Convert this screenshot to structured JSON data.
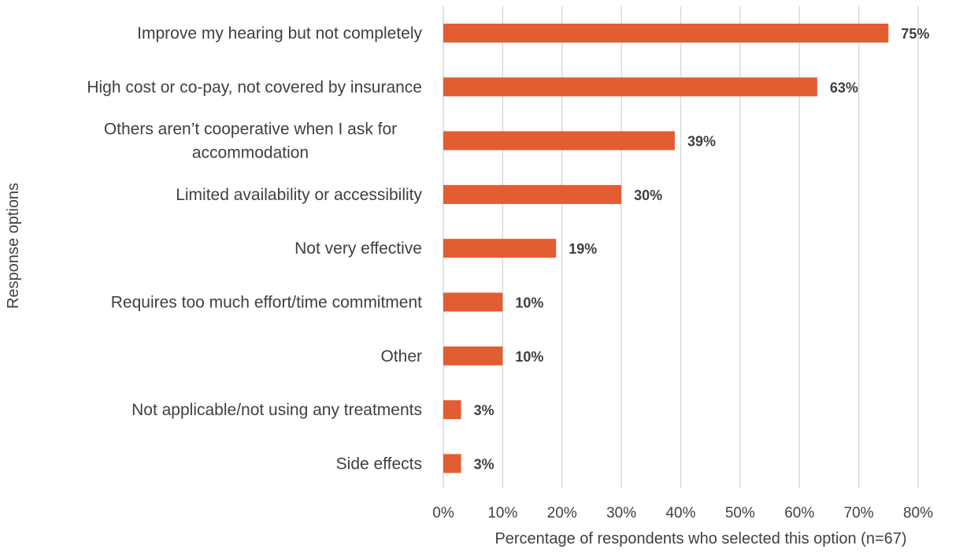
{
  "chart_data": {
    "type": "bar",
    "orientation": "horizontal",
    "categories": [
      "Improve my hearing but not completely",
      "High cost or co-pay, not covered by insurance",
      "Others aren’t cooperative when I ask for accommodation",
      "Limited availability or accessibility",
      "Not very effective",
      "Requires too much effort/time commitment",
      "Other",
      "Not applicable/not using any treatments",
      "Side effects"
    ],
    "category_lines": [
      [
        "Improve my hearing but not completely"
      ],
      [
        "High cost or co-pay, not covered by insurance"
      ],
      [
        "Others aren’t cooperative when I ask for",
        "accommodation"
      ],
      [
        "Limited availability or accessibility"
      ],
      [
        "Not very effective"
      ],
      [
        "Requires too much effort/time commitment"
      ],
      [
        "Other"
      ],
      [
        "Not applicable/not using any treatments"
      ],
      [
        "Side effects"
      ]
    ],
    "values": [
      75,
      63,
      39,
      30,
      19,
      10,
      10,
      3,
      3
    ],
    "data_labels": [
      "75%",
      "63%",
      "39%",
      "30%",
      "19%",
      "10%",
      "10%",
      "3%",
      "3%"
    ],
    "xlabel": "Percentage of respondents who selected this option (n=67)",
    "ylabel": "Response options",
    "xlim": [
      0,
      80
    ],
    "xticks": [
      0,
      10,
      20,
      30,
      40,
      50,
      60,
      70,
      80
    ],
    "xtick_labels": [
      "0%",
      "10%",
      "20%",
      "30%",
      "40%",
      "50%",
      "60%",
      "70%",
      "80%"
    ],
    "grid": "vertical",
    "legend": "none",
    "bar_color": "#E35D32",
    "text_color": "#404040",
    "grid_color": "#D9D9D9"
  }
}
